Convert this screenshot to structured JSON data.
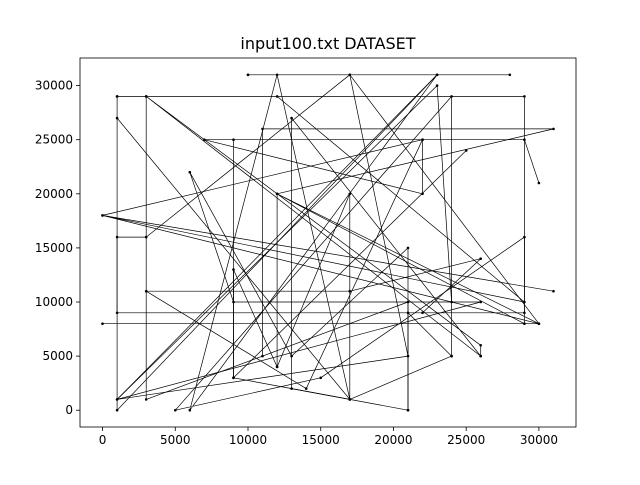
{
  "chart_data": {
    "type": "line",
    "title": "input100.txt DATASET",
    "xlabel": "",
    "ylabel": "",
    "xlim": [
      -1550,
      32550
    ],
    "ylim": [
      -1550,
      32550
    ],
    "grid": false,
    "legend": "none",
    "x_ticks": [
      0,
      5000,
      10000,
      15000,
      20000,
      25000,
      30000
    ],
    "x_tick_labels": [
      "0",
      "5000",
      "10000",
      "15000",
      "20000",
      "25000",
      "30000"
    ],
    "y_ticks": [
      0,
      5000,
      10000,
      15000,
      20000,
      25000,
      30000
    ],
    "y_tick_labels": [
      "0",
      "5000",
      "10000",
      "15000",
      "20000",
      "25000",
      "30000"
    ],
    "line_color": "#000000",
    "series": [
      {
        "x": [
          10000,
          23000,
          1000,
          21000,
          17000,
          28000,
          10000
        ],
        "y": [
          31000,
          31000,
          1000,
          5000,
          31000,
          31000,
          31000
        ]
      },
      {
        "x": [
          1000,
          29000,
          29000,
          1000,
          1000,
          12000,
          29000,
          0,
          31000
        ],
        "y": [
          29000,
          29000,
          9000,
          9000,
          29000,
          29000,
          10000,
          18000,
          11000
        ]
      },
      {
        "x": [
          3000,
          26000,
          26000,
          3000,
          3000,
          21000,
          21000,
          13000,
          13000,
          26000
        ],
        "y": [
          29000,
          6000,
          5000,
          29000,
          1000,
          10000,
          0,
          2000,
          27000,
          5000
        ]
      },
      {
        "x": [
          1000,
          17000,
          12000,
          6000,
          23000,
          1000,
          1000,
          3000,
          17000,
          30000,
          12000,
          29000,
          29000,
          15000,
          5000,
          24000,
          24000,
          17000
        ],
        "y": [
          27000,
          1000,
          31000,
          0,
          31000,
          0,
          16000,
          16000,
          31000,
          8000,
          20000,
          8000,
          16000,
          3000,
          0,
          29000,
          5000,
          1000
        ]
      },
      {
        "x": [
          0,
          30000,
          0,
          22000,
          14000,
          3000,
          17000,
          26000,
          22000
        ],
        "y": [
          8000,
          8000,
          18000,
          25000,
          2000,
          11000,
          11000,
          14000,
          9000
        ]
      },
      {
        "x": [
          9000,
          25000,
          9000,
          9000,
          22000,
          22000,
          7000,
          29000,
          30000
        ],
        "y": [
          3000,
          24000,
          3000,
          25000,
          25000,
          20000,
          25000,
          25000,
          21000
        ]
      },
      {
        "x": [
          12000,
          9000,
          9000,
          17000,
          17000,
          12000,
          12000,
          31000,
          11000,
          11000
        ],
        "y": [
          4000,
          13000,
          3000,
          1000,
          20000,
          4000,
          20000,
          26000,
          26000,
          5000
        ]
      },
      {
        "x": [
          24000,
          23000,
          1000,
          26000,
          9000,
          6000,
          13000,
          21000,
          21000,
          21000,
          24000
        ],
        "y": [
          10000,
          30000,
          1000,
          10000,
          10000,
          22000,
          5000,
          15000,
          0,
          9000,
          5000
        ]
      }
    ]
  }
}
